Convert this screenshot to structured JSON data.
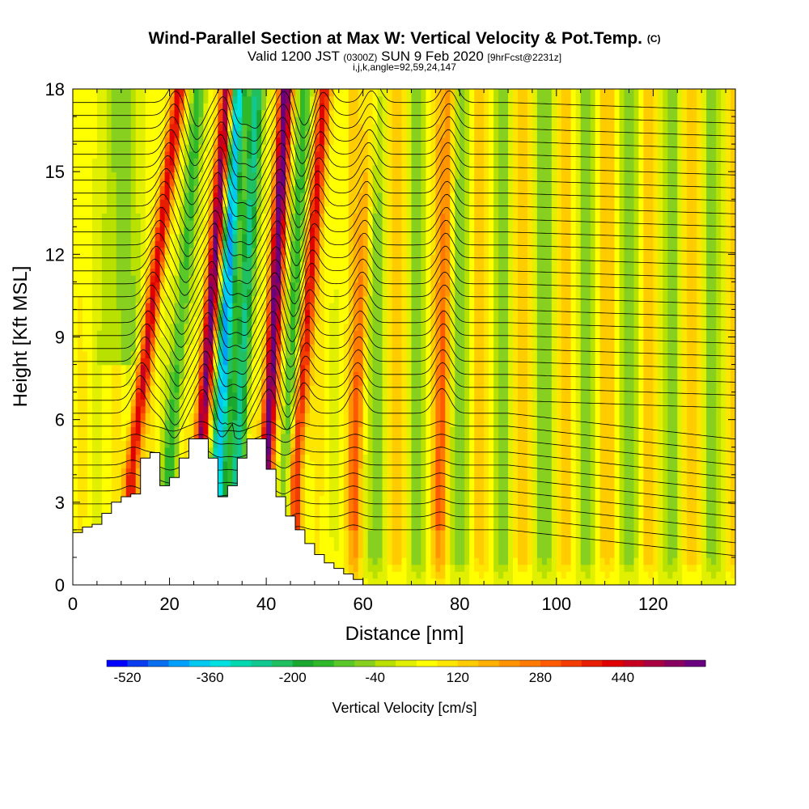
{
  "chart_data": {
    "type": "heatmap",
    "title": "Wind-Parallel Section at Max W: Vertical Velocity & Pot.Temp.",
    "title_mark": "(C)",
    "subtitle_main_a": "Valid 1200 JST",
    "subtitle_small_a": "(0300Z)",
    "subtitle_main_b": "SUN 9 Feb 2020",
    "subtitle_small_b": "[9hrFcst@2231z]",
    "subtitle_line3": "i,j,k,angle=92,59,24,147",
    "xlabel": "Distance [nm]",
    "ylabel": "Height [Kft MSL]",
    "xlim": [
      0,
      137
    ],
    "ylim": [
      0,
      18
    ],
    "xticks": [
      0,
      20,
      40,
      60,
      80,
      100,
      120
    ],
    "yticks": [
      0,
      3,
      6,
      9,
      12,
      15,
      18
    ],
    "colorbar": {
      "label": "Vertical Velocity [cm/s]",
      "tick_labels": [
        -520,
        -360,
        -200,
        -40,
        120,
        280,
        440
      ],
      "min": -560,
      "max": 600,
      "step": 40,
      "colors": [
        "#0000ff",
        "#0a3cf0",
        "#0a6ef0",
        "#00a0ff",
        "#00c8f0",
        "#00e0e0",
        "#00d8b0",
        "#10c890",
        "#20c060",
        "#1aa830",
        "#2eb82a",
        "#5ac828",
        "#88d020",
        "#b8e000",
        "#e0f000",
        "#ffff00",
        "#ffe600",
        "#ffcc00",
        "#ffb000",
        "#ff9400",
        "#ff7a00",
        "#ff5a00",
        "#f53c00",
        "#e81e00",
        "#e00000",
        "#c80020",
        "#a80040",
        "#880060",
        "#6a0080"
      ]
    },
    "terrain_profile": {
      "x": [
        0,
        2,
        4,
        6,
        8,
        10,
        12,
        14,
        16,
        18,
        20,
        22,
        24,
        26,
        28,
        30,
        32,
        34,
        36,
        38,
        40,
        42,
        44,
        46,
        48,
        50,
        52,
        54,
        56,
        58,
        60
      ],
      "height": [
        1.9,
        2.1,
        2.2,
        2.6,
        3.0,
        3.2,
        3.3,
        4.6,
        4.8,
        3.6,
        3.9,
        4.6,
        5.3,
        5.3,
        4.6,
        3.2,
        3.6,
        4.6,
        5.3,
        5.3,
        4.2,
        3.2,
        2.5,
        2.0,
        1.5,
        1.1,
        0.8,
        0.6,
        0.4,
        0.2,
        0.0
      ]
    },
    "updraft_bands": [
      {
        "x_bottom": 12,
        "x_top": 22,
        "w_max": 380
      },
      {
        "x_bottom": 26,
        "x_top": 32,
        "w_max": 520
      },
      {
        "x_bottom": 40,
        "x_top": 44,
        "w_max": 560
      },
      {
        "x_bottom": 46,
        "x_top": 52,
        "w_max": 360
      },
      {
        "x_bottom": 58,
        "x_top": 62,
        "w_max": 160
      },
      {
        "x_bottom": 76,
        "x_top": 78,
        "w_max": 160
      }
    ],
    "downdraft_bands": [
      {
        "x_bottom": 20,
        "x_top": 26,
        "w_min": -200
      },
      {
        "x_bottom": 30,
        "x_top": 34,
        "w_min": -480
      },
      {
        "x_bottom": 34,
        "x_top": 38,
        "w_min": -320
      },
      {
        "x_bottom": 44,
        "x_top": 48,
        "w_min": -200
      }
    ],
    "contour_field": "Potential Temperature",
    "grid": false
  }
}
